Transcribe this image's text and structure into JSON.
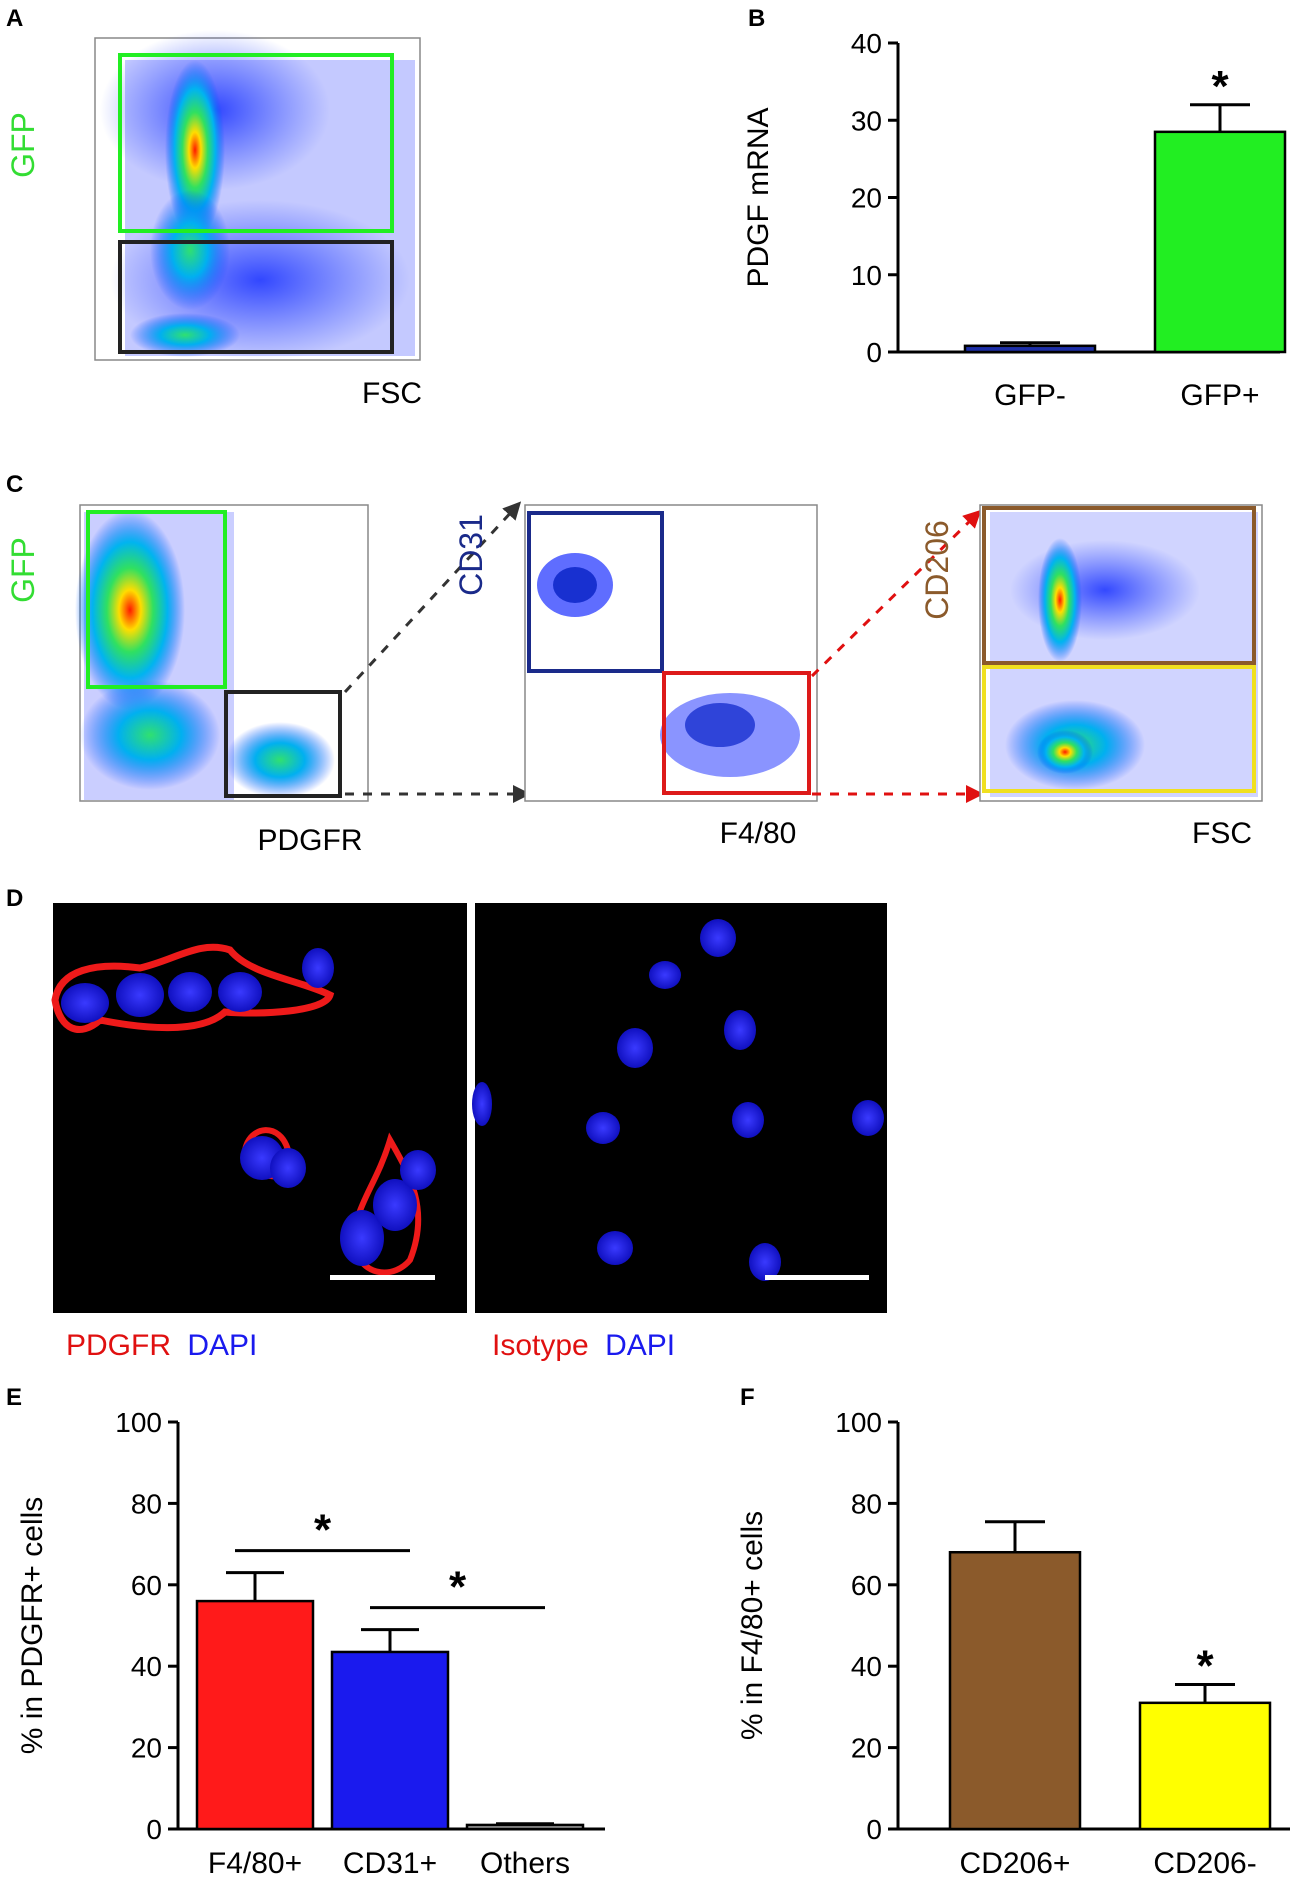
{
  "panels": {
    "A": {
      "label": "A",
      "y_label": "GFP",
      "x_label": "FSC",
      "colors": {
        "y_label": "#33dd33",
        "gate_positive": "#22ee22",
        "gate_negative": "#222222"
      }
    },
    "B": {
      "label": "B",
      "chart_data": {
        "type": "bar",
        "categories": [
          "GFP-",
          "GFP+"
        ],
        "values": [
          0.8,
          28.5
        ],
        "errors": [
          0.4,
          3.5
        ],
        "colors": [
          "#1d2fa8",
          "#22ee22"
        ],
        "ylabel": "PDGF mRNA",
        "xlabel": "",
        "ylim": [
          0,
          40
        ],
        "yticks": [
          0,
          10,
          20,
          30,
          40
        ],
        "annotations": [
          {
            "category": "GFP+",
            "text": "*"
          }
        ]
      }
    },
    "C": {
      "label": "C",
      "plot1": {
        "y_label": "GFP",
        "x_label": "PDGFR",
        "y_color": "#33dd33",
        "x_color": "#111111"
      },
      "plot2": {
        "y_label": "CD31",
        "x_label": "F4/80",
        "y_color": "#1a2a8a",
        "x_color": "#e01010"
      },
      "plot3": {
        "y_label": "CD206",
        "x_label": "FSC",
        "y_color": "#8b5a2b",
        "x_color": "#111111"
      },
      "colors": {
        "gate_green": "#22ee22",
        "gate_black": "#222222",
        "gate_blue": "#1a2a8a",
        "gate_red": "#dd1a1a",
        "gate_brown": "#8b5a2b",
        "gate_yellow": "#f0e020",
        "arrow_dark": "#333333",
        "arrow_red": "#e01010"
      }
    },
    "D": {
      "label": "D",
      "left_stain": "PDGFR",
      "left_counter": "DAPI",
      "right_stain": "Isotype",
      "right_counter": "DAPI",
      "colors": {
        "stain": "#e01010",
        "counter": "#1a1aee"
      }
    },
    "E": {
      "label": "E",
      "chart_data": {
        "type": "bar",
        "categories": [
          "F4/80+",
          "CD31+",
          "Others"
        ],
        "category_colors": [
          "#e01010",
          "#1a2a8a",
          "#111111"
        ],
        "values": [
          56,
          43.5,
          1
        ],
        "errors": [
          7,
          5.5,
          0.3
        ],
        "colors": [
          "#ff1a1a",
          "#1a1aee",
          "#999999"
        ],
        "ylabel": "% in PDGFR+ cells",
        "xlabel": "",
        "ylim": [
          0,
          100
        ],
        "yticks": [
          0,
          20,
          40,
          60,
          80,
          100
        ],
        "annotations": [
          {
            "from": "F4/80+",
            "to": "CD31+",
            "text": "*"
          },
          {
            "from": "CD31+",
            "to": "Others",
            "text": "*"
          }
        ]
      }
    },
    "F": {
      "label": "F",
      "chart_data": {
        "type": "bar",
        "categories": [
          "CD206+",
          "CD206-"
        ],
        "category_colors": [
          "#8b5a2b",
          "#f0b020"
        ],
        "values": [
          68,
          31
        ],
        "errors": [
          7.5,
          4.5
        ],
        "colors": [
          "#8b5a2b",
          "#ffff00"
        ],
        "ylabel": "% in F4/80+ cells",
        "xlabel": "",
        "ylim": [
          0,
          100
        ],
        "yticks": [
          0,
          20,
          40,
          60,
          80,
          100
        ],
        "annotations": [
          {
            "category": "CD206-",
            "text": "*"
          }
        ]
      }
    }
  }
}
